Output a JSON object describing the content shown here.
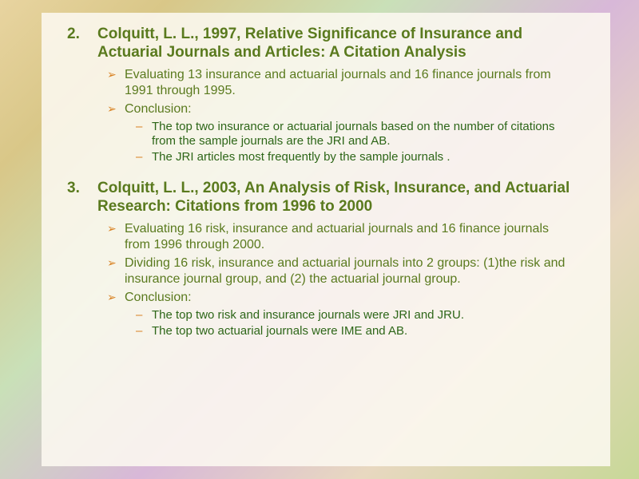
{
  "colors": {
    "heading": "#5a7a1e",
    "bullet_marker": "#d88020",
    "bullet_text": "#5a7a1e",
    "sub_text": "#2d6618",
    "content_bg": "rgba(252,248,240,0.88)"
  },
  "typography": {
    "heading_fontsize": 19,
    "bullet_fontsize": 16,
    "sub_fontsize": 15,
    "font_family": "Arial"
  },
  "items": [
    {
      "number": "2.",
      "title": "Colquitt, L. L., 1997, Relative Significance of Insurance and Actuarial Journals and Articles: A Citation Analysis",
      "bullets": [
        {
          "text": "Evaluating 13 insurance and actuarial journals and 16 finance journals from 1991 through 1995.",
          "subs": []
        },
        {
          "text": "Conclusion:",
          "subs": [
            "The top two insurance or actuarial journals based on the number of citations from the sample journals are the JRI and AB.",
            "The JRI articles most frequently by the sample journals ."
          ]
        }
      ]
    },
    {
      "number": "3.",
      "title": "Colquitt, L. L., 2003, An Analysis of Risk, Insurance, and Actuarial Research: Citations from 1996 to 2000",
      "bullets": [
        {
          "text": "Evaluating 16 risk, insurance and actuarial journals and 16 finance journals from 1996 through 2000.",
          "subs": []
        },
        {
          "text": "Dividing 16 risk, insurance and actuarial journals into 2 groups: (1)the risk and insurance journal group, and (2) the actuarial journal group.",
          "subs": []
        },
        {
          "text": "Conclusion:",
          "subs": [
            "The top two risk and insurance journals were  JRI and JRU.",
            "The top two actuarial journals were  IME and AB."
          ]
        }
      ]
    }
  ]
}
